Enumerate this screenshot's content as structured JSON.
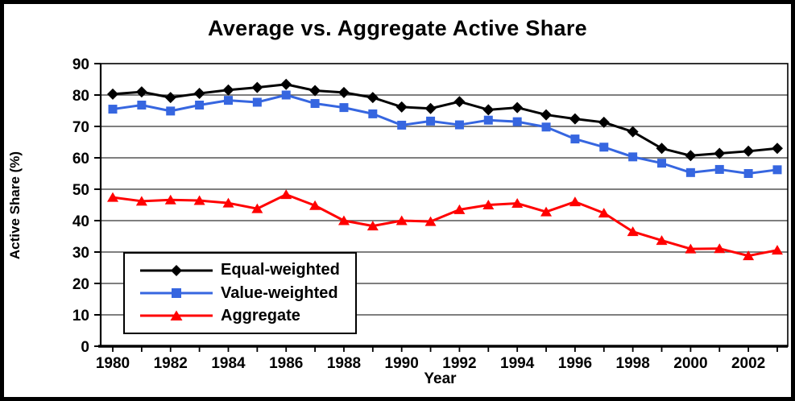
{
  "chart_data": {
    "type": "line",
    "title": "Average vs. Aggregate Active Share",
    "xlabel": "Year",
    "ylabel": "Active Share (%)",
    "ylim": [
      0,
      90
    ],
    "ytick_step": 10,
    "grid": true,
    "legend_position": "inside-bottom-left",
    "x_label_every": 2,
    "x": [
      1980,
      1981,
      1982,
      1983,
      1984,
      1985,
      1986,
      1987,
      1988,
      1989,
      1990,
      1991,
      1992,
      1993,
      1994,
      1995,
      1996,
      1997,
      1998,
      1999,
      2000,
      2001,
      2002,
      2003
    ],
    "series": [
      {
        "name": "Equal-weighted",
        "color": "#000000",
        "marker": "diamond",
        "values": [
          80.3,
          81.0,
          79.2,
          80.5,
          81.6,
          82.4,
          83.4,
          81.4,
          80.8,
          79.2,
          76.2,
          75.7,
          77.9,
          75.3,
          76.0,
          73.7,
          72.4,
          71.3,
          68.3,
          63.0,
          60.7,
          61.4,
          62.1,
          63.0
        ]
      },
      {
        "name": "Value-weighted",
        "color": "#3666E0",
        "marker": "square",
        "values": [
          75.5,
          76.8,
          74.9,
          76.8,
          78.3,
          77.7,
          80.0,
          77.3,
          76.0,
          74.0,
          70.4,
          71.7,
          70.5,
          72.0,
          71.5,
          69.8,
          66.0,
          63.4,
          60.3,
          58.3,
          55.3,
          56.3,
          55.0,
          56.2
        ]
      },
      {
        "name": "Aggregate",
        "color": "#FF0000",
        "marker": "triangle",
        "values": [
          47.4,
          46.2,
          46.6,
          46.4,
          45.6,
          43.8,
          48.3,
          44.8,
          40.0,
          38.3,
          40.0,
          39.7,
          43.5,
          45.0,
          45.5,
          42.8,
          46.0,
          42.4,
          36.5,
          33.7,
          31.0,
          31.1,
          28.8,
          30.6
        ]
      }
    ],
    "colors": {
      "grid": "#555555",
      "axis": "#000000",
      "background": "#FFFFFF",
      "border": "#000000"
    }
  }
}
